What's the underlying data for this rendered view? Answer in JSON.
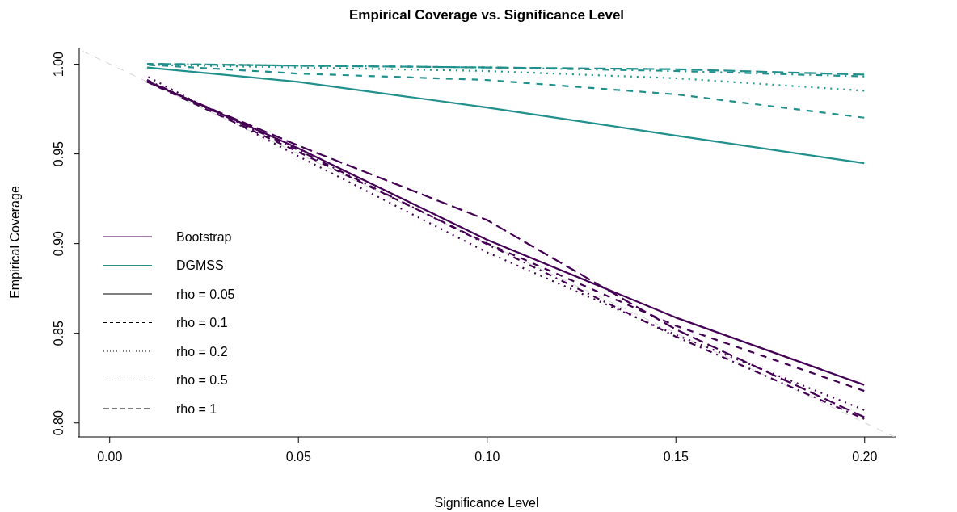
{
  "chart_data": {
    "type": "line",
    "title": "Empirical Coverage vs. Significance Level",
    "xlabel": "Significance Level",
    "ylabel": "Empirical Coverage",
    "x": [
      0.01,
      0.05,
      0.1,
      0.15,
      0.2
    ],
    "xlim": [
      -0.0084,
      0.2083
    ],
    "ylim": [
      0.792,
      1.0086
    ],
    "xticks": [
      {
        "value": 0,
        "label": "0.00"
      },
      {
        "value": 0.05,
        "label": "0.05"
      },
      {
        "value": 0.1,
        "label": "0.10"
      },
      {
        "value": 0.15,
        "label": "0.15"
      },
      {
        "value": 0.2,
        "label": "0.20"
      }
    ],
    "yticks": [
      {
        "value": 0.8,
        "label": "0.80"
      },
      {
        "value": 0.85,
        "label": "0.85"
      },
      {
        "value": 0.9,
        "label": "0.90"
      },
      {
        "value": 0.95,
        "label": "0.95"
      },
      {
        "value": 1,
        "label": "1.00"
      }
    ],
    "grid": false,
    "legend": "left",
    "marker": "none",
    "series": [
      {
        "type": "line",
        "color": "#d3d3d3",
        "line_style": "dashed",
        "x": [
          -0.0084,
          0.208
        ],
        "values": [
          1.0084,
          0.792
        ]
      },
      {
        "name": "Bootstrap",
        "color": "#440154",
        "line_style": "solid",
        "values": [
          0.9905,
          0.953,
          0.902,
          0.8586,
          0.821
        ]
      },
      {
        "color": "#440154",
        "line_style": "dashed",
        "values": [
          0.99,
          0.951,
          0.9,
          0.854,
          0.8176
        ]
      },
      {
        "color": "#440154",
        "line_style": "dotted",
        "values": [
          0.993,
          0.9486,
          0.895,
          0.849,
          0.807
        ]
      },
      {
        "color": "#440154",
        "line_style": "dotdash",
        "values": [
          0.991,
          0.952,
          0.8995,
          0.848,
          0.802
        ]
      },
      {
        "color": "#440154",
        "line_style": "longdash",
        "values": [
          0.99,
          0.9545,
          0.913,
          0.852,
          0.803
        ]
      },
      {
        "name": "DGMSS",
        "color": "#21908c",
        "line_style": "solid",
        "values": [
          0.998,
          0.99,
          0.9757,
          0.96,
          0.9446
        ]
      },
      {
        "color": "#21908c",
        "line_style": "dashed",
        "values": [
          0.9995,
          0.9946,
          0.991,
          0.983,
          0.97
        ]
      },
      {
        "color": "#21908c",
        "line_style": "dotted",
        "values": [
          0.9995,
          0.998,
          0.996,
          0.992,
          0.985
        ]
      },
      {
        "color": "#21908c",
        "line_style": "dotdash",
        "values": [
          1.0,
          0.999,
          0.998,
          0.996,
          0.993
        ]
      },
      {
        "color": "#21908c",
        "line_style": "longdash",
        "values": [
          1.0,
          0.999,
          0.998,
          0.997,
          0.994
        ]
      },
      {
        "name": "rho = 0.05",
        "color": "#000000",
        "line_style": "solid",
        "values": [
          null,
          null,
          null,
          null,
          null
        ]
      },
      {
        "name": "rho = 0.1",
        "color": "#000000",
        "line_style": "dashed",
        "values": [
          null,
          null,
          null,
          null,
          null
        ]
      },
      {
        "name": "rho = 0.2",
        "color": "#000000",
        "line_style": "dotted",
        "values": [
          null,
          null,
          null,
          null,
          null
        ]
      },
      {
        "name": "rho = 0.5",
        "color": "#000000",
        "line_style": "dotdash",
        "values": [
          null,
          null,
          null,
          null,
          null
        ]
      },
      {
        "name": "rho = 1",
        "color": "#000000",
        "line_style": "longdash",
        "values": [
          null,
          null,
          null,
          null,
          null
        ]
      }
    ]
  }
}
